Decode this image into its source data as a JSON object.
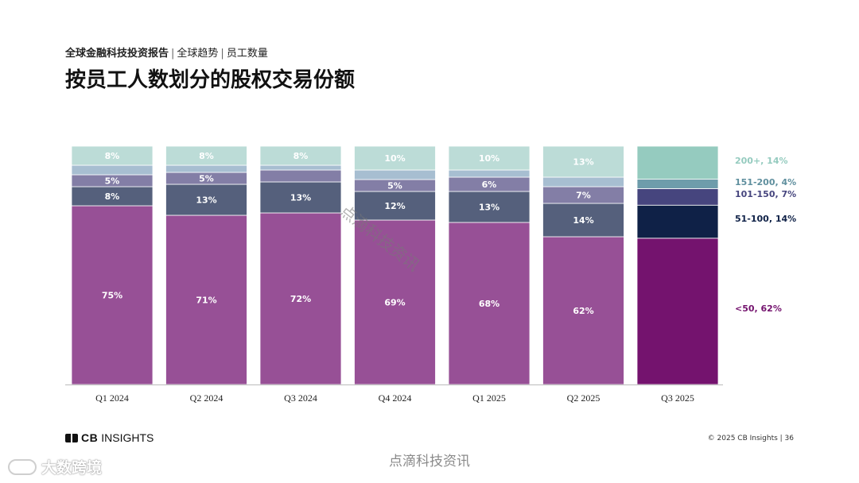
{
  "header": {
    "breadcrumb_main": "全球金融科技投资报告",
    "breadcrumb_sep": "|",
    "breadcrumb_2": "全球趋势",
    "breadcrumb_3": "员工数量",
    "title": "按员工人数划分的股权交易份额"
  },
  "chart_data": {
    "type": "bar",
    "stacked": true,
    "normalized": true,
    "title": "按员工人数划分的股权交易份额",
    "categories": [
      "Q1 2024",
      "Q2 2024",
      "Q3 2024",
      "Q4 2024",
      "Q1 2025",
      "Q2 2025",
      "Q3 2025"
    ],
    "series": [
      {
        "name": "<50",
        "values": [
          75,
          71,
          72,
          69,
          68,
          62,
          62
        ],
        "color": "#975096",
        "highlight_color": "#74136e",
        "text_color": "#ffffff"
      },
      {
        "name": "51-100",
        "values": [
          8,
          13,
          13,
          12,
          13,
          14,
          14
        ],
        "color": "#55607c",
        "highlight_color": "#0f2147",
        "text_color": "#ffffff"
      },
      {
        "name": "101-150",
        "values": [
          5,
          5,
          5,
          5,
          6,
          7,
          7
        ],
        "color": "#837ea6",
        "highlight_color": "#46457e",
        "text_color": "#ffffff"
      },
      {
        "name": "151-200",
        "values": [
          4,
          3,
          2,
          4,
          3,
          4,
          4
        ],
        "color": "#a7bed1",
        "highlight_color": "#6e9cab",
        "text_color": "#ffffff"
      },
      {
        "name": "200+",
        "values": [
          8,
          8,
          8,
          10,
          10,
          13,
          14
        ],
        "color": "#bcdcd7",
        "highlight_color": "#95cbbf",
        "text_color": "#ffffff"
      }
    ],
    "data_labels": [
      {
        "series": "<50",
        "labels": [
          "75%",
          "71%",
          "72%",
          "69%",
          "68%",
          "62%",
          ""
        ]
      },
      {
        "series": "51-100",
        "labels": [
          "8%",
          "13%",
          "13%",
          "12%",
          "13%",
          "14%",
          ""
        ]
      },
      {
        "series": "101-150",
        "labels": [
          "5%",
          "5%",
          "",
          "5%",
          "6%",
          "7%",
          ""
        ]
      },
      {
        "series": "151-200",
        "labels": [
          "",
          "",
          "",
          "",
          "",
          "",
          ""
        ]
      },
      {
        "series": "200+",
        "labels": [
          "8%",
          "8%",
          "8%",
          "10%",
          "10%",
          "13%",
          ""
        ]
      }
    ],
    "highlight_index": 6,
    "legend": [
      {
        "text": "200+, 14%",
        "color": "#95cbbf"
      },
      {
        "text": "151-200, 4%",
        "color": "#5f8f9e"
      },
      {
        "text": "101-150, 7%",
        "color": "#46457e"
      },
      {
        "text": "51-100, 14%",
        "color": "#0f2147"
      },
      {
        "text": "<50, 62%",
        "color": "#74136e"
      }
    ],
    "legend_placement": "right",
    "xlabel": "",
    "ylabel": "",
    "ylim": [
      0,
      100
    ]
  },
  "footer": {
    "brand": "CBINSIGHTS",
    "brand_bold": "CB",
    "brand_rest": "INSIGHTS",
    "copyright": "© 2025 CB Insights | 36"
  },
  "watermarks": {
    "diagonal": "点滴科技资讯",
    "bottom": "点滴科技资讯",
    "corner": "大数跨境"
  }
}
